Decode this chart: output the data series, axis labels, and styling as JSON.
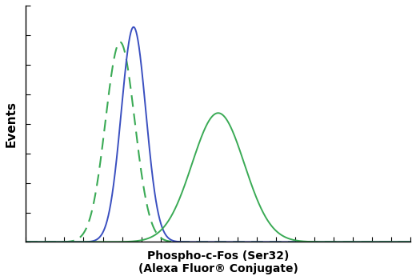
{
  "xlabel_line1": "Phospho-c-Fos (Ser32)",
  "xlabel_line2": "(Alexa Fluor® Conjugate)",
  "ylabel": "Events",
  "bg_color": "#ffffff",
  "panel_bg": "#ffffff",
  "blue_solid": {
    "mean": 0.28,
    "std": 0.032,
    "peak": 1.0,
    "color": "#3a4fc0",
    "linestyle": "solid",
    "linewidth": 1.4
  },
  "green_dashed": {
    "mean": 0.245,
    "std": 0.038,
    "peak": 0.93,
    "color": "#3aaa55",
    "linestyle": "dashed",
    "linewidth": 1.5,
    "dash_seq": [
      7,
      4
    ]
  },
  "green_solid": {
    "mean": 0.5,
    "std": 0.068,
    "peak": 0.6,
    "color": "#3aaa55",
    "linestyle": "solid",
    "linewidth": 1.4
  },
  "xlim": [
    0,
    1
  ],
  "ylim": [
    0,
    1.1
  ],
  "xtick_count": 20,
  "ytick_count": 8,
  "xlabel_fontsize": 10,
  "ylabel_fontsize": 11,
  "xlabel_fontweight": "bold",
  "ylabel_fontweight": "bold"
}
